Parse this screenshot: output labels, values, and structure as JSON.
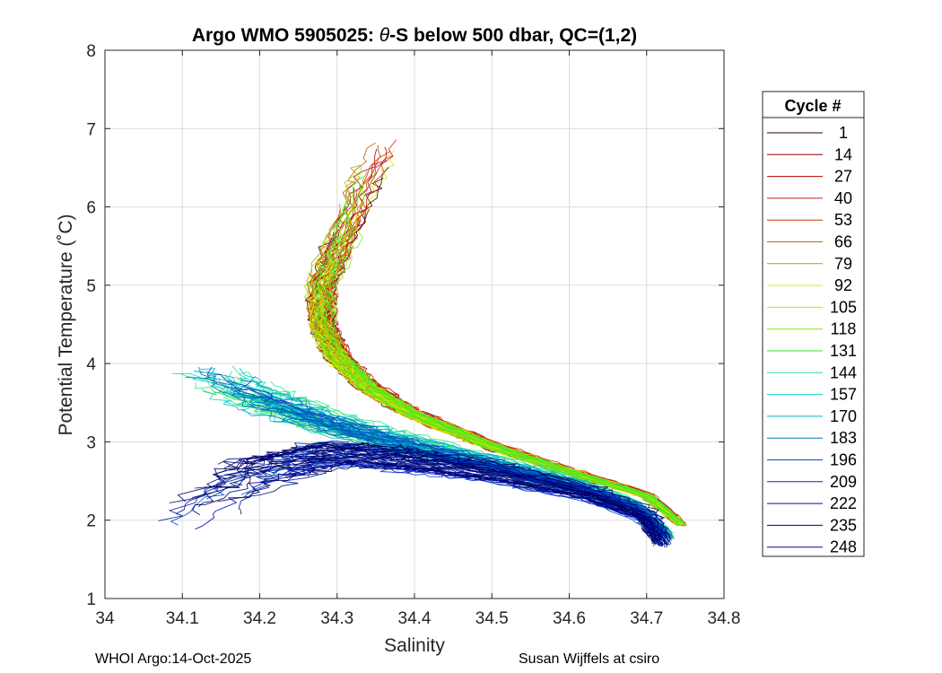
{
  "chart_data": {
    "type": "line",
    "title_prefix": "Argo WMO 5905025: ",
    "title_theta": "θ",
    "title_suffix": "-S below 500 dbar,  QC=(1,2)",
    "xlabel": "Salinity",
    "ylabel": "Potential Temperature (˚C)",
    "xlim": [
      34.0,
      34.8
    ],
    "ylim": [
      1,
      8
    ],
    "xticks": [
      "34",
      "34.1",
      "34.2",
      "34.3",
      "34.4",
      "34.5",
      "34.6",
      "34.7",
      "34.8"
    ],
    "yticks": [
      "1",
      "2",
      "3",
      "4",
      "5",
      "6",
      "7",
      "8"
    ],
    "grid": true,
    "legend": {
      "title": "Cycle #",
      "placement": "right-outside",
      "entries": [
        "1",
        "14",
        "27",
        "40",
        "53",
        "66",
        "79",
        "92",
        "105",
        "118",
        "131",
        "144",
        "157",
        "170",
        "183",
        "196",
        "209",
        "222",
        "235",
        "248"
      ],
      "colors": [
        "#2a0000",
        "#8b0000",
        "#b40000",
        "#c81e1e",
        "#c83c00",
        "#c86400",
        "#c89600",
        "#e6e600",
        "#c8e600",
        "#8ce614",
        "#3ce628",
        "#28e68c",
        "#14d2c8",
        "#00b4c8",
        "#0078b4",
        "#0050c8",
        "#0028c8",
        "#00148c",
        "#000064",
        "#0000b4"
      ]
    },
    "series_shape": {
      "description": "approximate θ-S curves per cycle (salinity, potential temperature)",
      "warm_curve": [
        [
          34.36,
          6.8
        ],
        [
          34.33,
          6.2
        ],
        [
          34.3,
          5.5
        ],
        [
          34.28,
          5.0
        ],
        [
          34.28,
          4.5
        ],
        [
          34.3,
          4.1
        ],
        [
          34.34,
          3.7
        ],
        [
          34.4,
          3.35
        ],
        [
          34.5,
          2.95
        ],
        [
          34.6,
          2.62
        ],
        [
          34.7,
          2.32
        ],
        [
          34.745,
          1.95
        ]
      ],
      "cool_curve": [
        [
          34.12,
          3.9
        ],
        [
          34.2,
          3.55
        ],
        [
          34.3,
          3.2
        ],
        [
          34.4,
          2.95
        ],
        [
          34.5,
          2.72
        ],
        [
          34.6,
          2.47
        ],
        [
          34.68,
          2.2
        ],
        [
          34.725,
          1.8
        ]
      ],
      "fresh_curve": [
        [
          34.1,
          2.0
        ],
        [
          34.2,
          2.6
        ],
        [
          34.3,
          2.85
        ],
        [
          34.4,
          2.75
        ],
        [
          34.5,
          2.6
        ],
        [
          34.62,
          2.35
        ],
        [
          34.7,
          2.05
        ],
        [
          34.72,
          1.7
        ]
      ]
    }
  },
  "footer": {
    "left": "WHOI Argo:14-Oct-2025",
    "right": "Susan Wijffels at csiro"
  }
}
